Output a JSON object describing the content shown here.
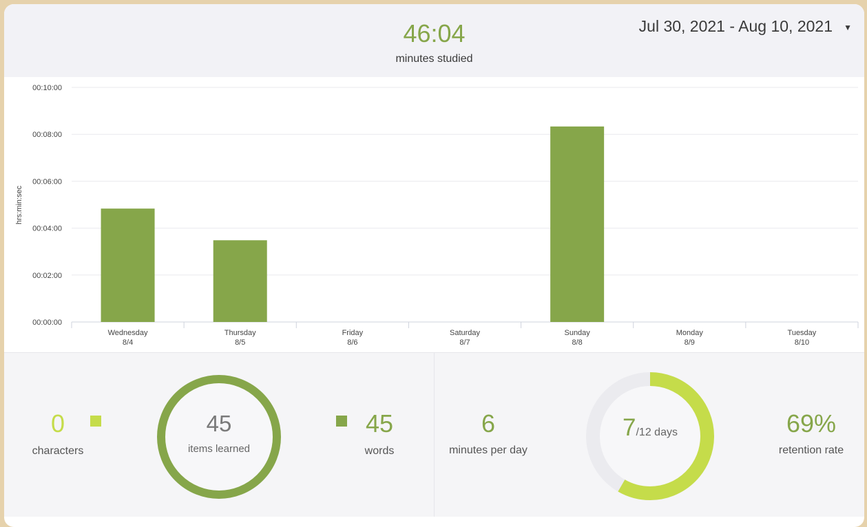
{
  "header": {
    "total_value": "46:04",
    "total_label": "minutes studied",
    "date_range": "Jul 30, 2021 - Aug 10, 2021",
    "dropdown_icon": "chevron-down-icon"
  },
  "chart_data": {
    "type": "bar",
    "ylabel": "hrs:min:sec",
    "yticks": [
      "00:00:00",
      "00:02:00",
      "00:04:00",
      "00:06:00",
      "00:08:00",
      "00:10:00"
    ],
    "ylim_seconds": [
      0,
      600
    ],
    "grid": true,
    "categories": [
      {
        "day": "Wednesday",
        "date": "8/4"
      },
      {
        "day": "Thursday",
        "date": "8/5"
      },
      {
        "day": "Friday",
        "date": "8/6"
      },
      {
        "day": "Saturday",
        "date": "8/7"
      },
      {
        "day": "Sunday",
        "date": "8/8"
      },
      {
        "day": "Monday",
        "date": "8/9"
      },
      {
        "day": "Tuesday",
        "date": "8/10"
      }
    ],
    "values_seconds": [
      290,
      209,
      0,
      0,
      500,
      0,
      0
    ],
    "bar_color": "#86a64a"
  },
  "stats": {
    "characters": {
      "value": "0",
      "label": "characters",
      "color": "#c5dc4a"
    },
    "items_learned": {
      "value": "45",
      "label": "items learned",
      "fraction_words": 1.0,
      "ring_color": "#86a64a"
    },
    "words": {
      "value": "45",
      "label": "words",
      "color": "#86a64a"
    },
    "minutes_per_day": {
      "value": "6",
      "label": "minutes per day"
    },
    "days": {
      "value": "7",
      "suffix": "/12 days",
      "fraction": 0.5833,
      "ring_color": "#c5dc4a",
      "track_color": "#ebebef"
    },
    "retention": {
      "value": "69%",
      "label": "retention rate"
    }
  }
}
